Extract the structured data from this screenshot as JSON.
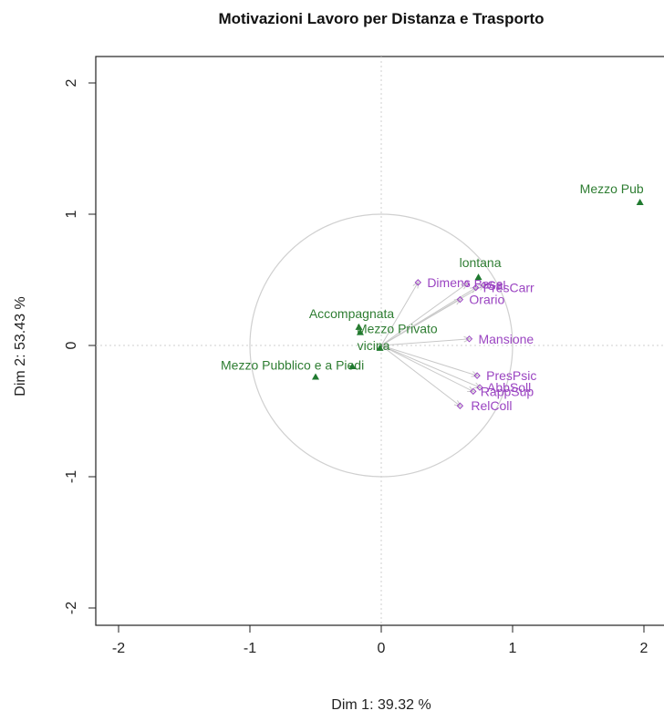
{
  "chart_data": {
    "type": "scatter",
    "title": "Motivazioni Lavoro per Distanza e Trasporto",
    "xlabel": "Dim 1: 39.32 %",
    "ylabel": "Dim 2: 53.43 %",
    "xlim": [
      -2.2,
      2.25
    ],
    "ylim": [
      -2.2,
      2.15
    ],
    "xticks": [
      -2,
      -1,
      0,
      1,
      2
    ],
    "yticks": [
      -2,
      -1,
      0,
      1,
      2
    ],
    "tick_labels_x": [
      "-2",
      "-1",
      "0",
      "1",
      "2"
    ],
    "tick_labels_y": [
      "-2",
      "-1",
      "0",
      "1",
      "2"
    ],
    "reference_lines": {
      "x": 0,
      "y": 0
    },
    "unit_circle_radius": 1,
    "colors": {
      "supplementary": "#1f7a2f",
      "supplementary_text": "#2e7d32",
      "variables": "#9b45c2",
      "arrows": "#c8c8c8",
      "circle": "#d0d0d0"
    },
    "supplementary_points": [
      {
        "label": "Mezzo Pub",
        "x": 1.97,
        "y": 1.09
      },
      {
        "label": "lontana",
        "x": 0.74,
        "y": 0.52
      },
      {
        "label": "Accompagnata",
        "x": -0.17,
        "y": 0.14
      },
      {
        "label": "Mezzo Privato",
        "x": -0.16,
        "y": 0.1
      },
      {
        "label": "vicina",
        "x": -0.01,
        "y": -0.02
      },
      {
        "label": "Mezzo Pubblico e a Piedi",
        "x": -0.5,
        "y": -0.24
      },
      {
        "label": "",
        "x": -0.22,
        "y": -0.16
      }
    ],
    "variables": [
      {
        "label": "Dimens",
        "x": 0.28,
        "y": 0.48
      },
      {
        "label": "Base",
        "x": 0.65,
        "y": 0.47
      },
      {
        "label": "Sal",
        "x": 0.78,
        "y": 0.46
      },
      {
        "label": "PresCarr",
        "x": 0.72,
        "y": 0.44
      },
      {
        "label": "Orario",
        "x": 0.6,
        "y": 0.35
      },
      {
        "label": "Mansione",
        "x": 0.67,
        "y": 0.05
      },
      {
        "label": "PresPsic",
        "x": 0.73,
        "y": -0.23
      },
      {
        "label": "AbbSoll",
        "x": 0.75,
        "y": -0.32
      },
      {
        "label": "RappSup",
        "x": 0.7,
        "y": -0.35
      },
      {
        "label": "RelColl",
        "x": 0.6,
        "y": -0.46
      }
    ]
  }
}
